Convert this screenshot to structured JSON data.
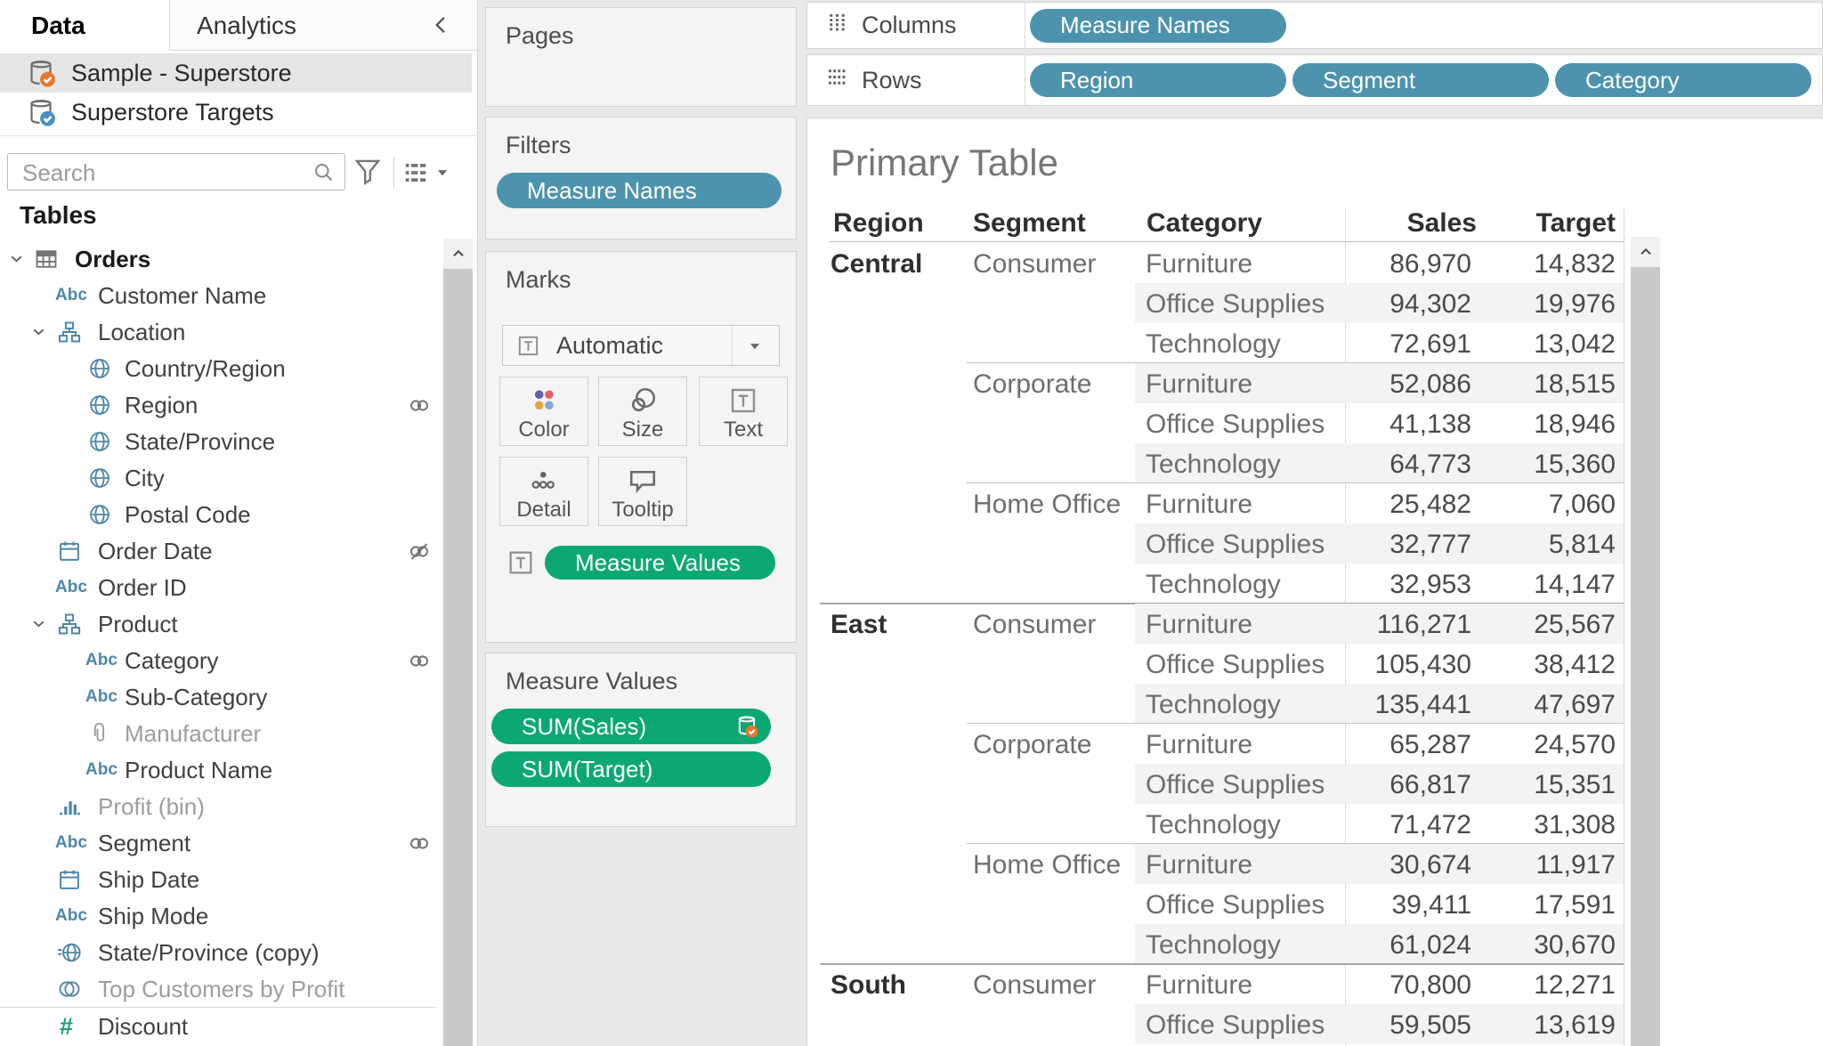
{
  "colors": {
    "pill_blue": "#4E93AE",
    "pill_green": "#0BA874",
    "badge_orange": "#E8762C",
    "badge_blue": "#4A90C4",
    "selected_row_bg": "#E5E5E5",
    "band_gray": "#F3F3F3"
  },
  "data_pane": {
    "tabs": [
      {
        "label": "Data",
        "active": true
      },
      {
        "label": "Analytics",
        "active": false
      }
    ],
    "sources": [
      {
        "name": "Sample - Superstore",
        "icon": "db-orange",
        "selected": true
      },
      {
        "name": "Superstore Targets",
        "icon": "db-blue",
        "selected": false
      }
    ],
    "search": {
      "placeholder": "Search"
    },
    "tables_header": "Tables",
    "fields": [
      {
        "label": "Orders",
        "icon": "table",
        "level": 0,
        "chev": true
      },
      {
        "label": "Customer Name",
        "icon": "abc",
        "level": 1
      },
      {
        "label": "Location",
        "icon": "hier",
        "level": 1,
        "chev": true
      },
      {
        "label": "Country/Region",
        "icon": "globe",
        "level": 2
      },
      {
        "label": "Region",
        "icon": "globe",
        "level": 2,
        "link": "link"
      },
      {
        "label": "State/Province",
        "icon": "globe",
        "level": 2
      },
      {
        "label": "City",
        "icon": "globe",
        "level": 2
      },
      {
        "label": "Postal Code",
        "icon": "globe",
        "level": 2
      },
      {
        "label": "Order Date",
        "icon": "cal",
        "level": 1,
        "link": "broken"
      },
      {
        "label": "Order ID",
        "icon": "abc",
        "level": 1
      },
      {
        "label": "Product",
        "icon": "hier",
        "level": 1,
        "chev": true
      },
      {
        "label": "Category",
        "icon": "abc",
        "level": 2,
        "link": "link"
      },
      {
        "label": "Sub-Category",
        "icon": "abc",
        "level": 2
      },
      {
        "label": "Manufacturer",
        "icon": "clip",
        "level": 2,
        "dim": true
      },
      {
        "label": "Product Name",
        "icon": "abc",
        "level": 2
      },
      {
        "label": "Profit (bin)",
        "icon": "bin",
        "level": 1,
        "dim": true
      },
      {
        "label": "Segment",
        "icon": "abc",
        "level": 1,
        "link": "link"
      },
      {
        "label": "Ship Date",
        "icon": "cal",
        "level": 1
      },
      {
        "label": "Ship Mode",
        "icon": "abc",
        "level": 1
      },
      {
        "label": "State/Province (copy)",
        "icon": "globe-eq",
        "level": 1
      },
      {
        "label": "Top Customers by Profit",
        "icon": "sets",
        "level": 1,
        "dim": true
      },
      {
        "label": "Discount",
        "icon": "hash",
        "level": 1,
        "divider": true
      }
    ]
  },
  "cards": {
    "pages": {
      "title": "Pages"
    },
    "filters": {
      "title": "Filters",
      "pills": [
        {
          "label": "Measure Names",
          "color": "blue"
        }
      ]
    },
    "marks": {
      "title": "Marks",
      "mark_type": "Automatic",
      "buttons": [
        {
          "label": "Color"
        },
        {
          "label": "Size"
        },
        {
          "label": "Text"
        },
        {
          "label": "Detail"
        },
        {
          "label": "Tooltip"
        }
      ],
      "shelf_pills": [
        {
          "label": "Measure Values",
          "color": "green"
        }
      ]
    },
    "measure_values": {
      "title": "Measure Values",
      "pills": [
        {
          "label": "SUM(Sales)",
          "color": "green",
          "badge": "dbcheck"
        },
        {
          "label": "SUM(Target)",
          "color": "green"
        }
      ]
    }
  },
  "shelves": {
    "columns": {
      "label": "Columns",
      "pills": [
        {
          "label": "Measure Names",
          "color": "blue"
        }
      ]
    },
    "rows": {
      "label": "Rows",
      "pills": [
        {
          "label": "Region",
          "color": "blue"
        },
        {
          "label": "Segment",
          "color": "blue"
        },
        {
          "label": "Category",
          "color": "blue"
        }
      ]
    }
  },
  "sheet": {
    "title": "Primary Table",
    "table": {
      "headers": [
        "Region",
        "Segment",
        "Category",
        "Sales",
        "Target"
      ],
      "rows": [
        {
          "region": "Central",
          "segment": "Consumer",
          "category": "Furniture",
          "sales": "86,970",
          "target": "14,832"
        },
        {
          "category": "Office Supplies",
          "sales": "94,302",
          "target": "19,976"
        },
        {
          "category": "Technology",
          "sales": "72,691",
          "target": "13,042"
        },
        {
          "segment": "Corporate",
          "category": "Furniture",
          "sales": "52,086",
          "target": "18,515",
          "sep": "segment"
        },
        {
          "category": "Office Supplies",
          "sales": "41,138",
          "target": "18,946"
        },
        {
          "category": "Technology",
          "sales": "64,773",
          "target": "15,360"
        },
        {
          "segment": "Home Office",
          "category": "Furniture",
          "sales": "25,482",
          "target": "7,060",
          "sep": "segment"
        },
        {
          "category": "Office Supplies",
          "sales": "32,777",
          "target": "5,814"
        },
        {
          "category": "Technology",
          "sales": "32,953",
          "target": "14,147"
        },
        {
          "region": "East",
          "segment": "Consumer",
          "category": "Furniture",
          "sales": "116,271",
          "target": "25,567",
          "sep": "region"
        },
        {
          "category": "Office Supplies",
          "sales": "105,430",
          "target": "38,412"
        },
        {
          "category": "Technology",
          "sales": "135,441",
          "target": "47,697"
        },
        {
          "segment": "Corporate",
          "category": "Furniture",
          "sales": "65,287",
          "target": "24,570",
          "sep": "segment"
        },
        {
          "category": "Office Supplies",
          "sales": "66,817",
          "target": "15,351"
        },
        {
          "category": "Technology",
          "sales": "71,472",
          "target": "31,308"
        },
        {
          "segment": "Home Office",
          "category": "Furniture",
          "sales": "30,674",
          "target": "11,917",
          "sep": "segment"
        },
        {
          "category": "Office Supplies",
          "sales": "39,411",
          "target": "17,591"
        },
        {
          "category": "Technology",
          "sales": "61,024",
          "target": "30,670"
        },
        {
          "region": "South",
          "segment": "Consumer",
          "category": "Furniture",
          "sales": "70,800",
          "target": "12,271",
          "sep": "region"
        },
        {
          "category": "Office Supplies",
          "sales": "59,505",
          "target": "13,619"
        }
      ]
    }
  }
}
